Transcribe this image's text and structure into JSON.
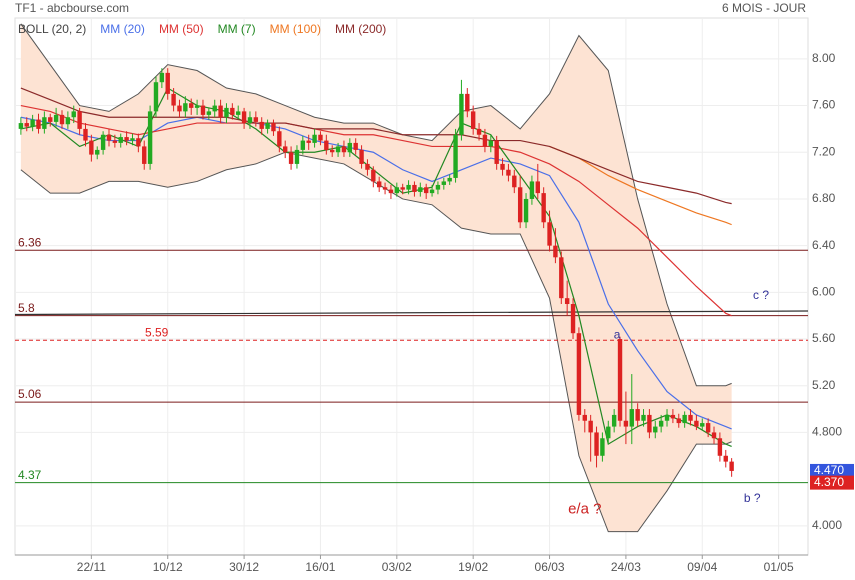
{
  "chart_data": {
    "type": "candlestick",
    "title": "TF1 - abcbourse.com",
    "subtitle": "6 MOIS - JOUR",
    "xlim": [
      -1,
      134
    ],
    "ylim": [
      3.75,
      8.35
    ],
    "xticks": [
      {
        "value": 12,
        "label": "22/11"
      },
      {
        "value": 25,
        "label": "10/12"
      },
      {
        "value": 38,
        "label": "30/12"
      },
      {
        "value": 51,
        "label": "16/01"
      },
      {
        "value": 64,
        "label": "03/02"
      },
      {
        "value": 77,
        "label": "19/02"
      },
      {
        "value": 90,
        "label": "06/03"
      },
      {
        "value": 103,
        "label": "24/03"
      },
      {
        "value": 116,
        "label": "09/04"
      },
      {
        "value": 129,
        "label": "01/05"
      }
    ],
    "yticks": [
      {
        "value": 8,
        "label": "8.00"
      },
      {
        "value": 7.6,
        "label": "7.60"
      },
      {
        "value": 7.2,
        "label": "7.20"
      },
      {
        "value": 6.8,
        "label": "6.80"
      },
      {
        "value": 6.4,
        "label": "6.40"
      },
      {
        "value": 6,
        "label": "6.00"
      },
      {
        "value": 5.6,
        "label": "5.60"
      },
      {
        "value": 5.2,
        "label": "5.20"
      },
      {
        "value": 4.8,
        "label": "4.800"
      },
      {
        "value": 4,
        "label": "4.000"
      }
    ],
    "grid": true,
    "up_color": "#22aa22",
    "down_color": "#dd2222",
    "x": [
      0,
      1,
      2,
      3,
      4,
      5,
      6,
      7,
      8,
      9,
      10,
      11,
      12,
      13,
      14,
      15,
      16,
      17,
      18,
      19,
      20,
      21,
      22,
      23,
      24,
      25,
      26,
      27,
      28,
      29,
      30,
      31,
      32,
      33,
      34,
      35,
      36,
      37,
      38,
      39,
      40,
      41,
      42,
      43,
      44,
      45,
      46,
      47,
      48,
      49,
      50,
      51,
      52,
      53,
      54,
      55,
      56,
      57,
      58,
      59,
      60,
      61,
      62,
      63,
      64,
      65,
      66,
      67,
      68,
      69,
      70,
      71,
      72,
      73,
      74,
      75,
      76,
      77,
      78,
      79,
      80,
      81,
      82,
      83,
      84,
      85,
      86,
      87,
      88,
      89,
      90,
      91,
      92,
      93,
      94,
      95,
      96,
      97,
      98,
      99,
      100,
      101,
      102,
      103,
      104,
      105,
      106,
      107,
      108,
      109,
      110,
      111,
      112,
      113,
      114,
      115,
      116,
      117,
      118,
      119,
      120,
      121
    ],
    "open": [
      7.4,
      7.45,
      7.42,
      7.48,
      7.4,
      7.5,
      7.46,
      7.52,
      7.44,
      7.5,
      7.55,
      7.4,
      7.3,
      7.18,
      7.22,
      7.35,
      7.3,
      7.28,
      7.33,
      7.3,
      7.32,
      7.25,
      7.1,
      7.55,
      7.8,
      7.88,
      7.7,
      7.6,
      7.55,
      7.62,
      7.58,
      7.6,
      7.52,
      7.55,
      7.6,
      7.5,
      7.58,
      7.52,
      7.55,
      7.45,
      7.5,
      7.46,
      7.4,
      7.45,
      7.38,
      7.25,
      7.2,
      7.1,
      7.22,
      7.3,
      7.28,
      7.35,
      7.3,
      7.22,
      7.2,
      7.25,
      7.2,
      7.28,
      7.22,
      7.1,
      7.05,
      6.95,
      6.9,
      6.88,
      6.85,
      6.9,
      6.88,
      6.92,
      6.86,
      6.9,
      6.85,
      6.88,
      6.92,
      6.95,
      6.98,
      7.35,
      7.7,
      7.55,
      7.4,
      7.35,
      7.25,
      7.3,
      7.1,
      7.05,
      7.0,
      6.9,
      6.6,
      6.8,
      6.95,
      6.85,
      6.6,
      6.4,
      6.3,
      5.95,
      5.9,
      5.65,
      4.95,
      4.9,
      4.8,
      4.6,
      4.75,
      4.85,
      5.6,
      4.9,
      4.85,
      5.0,
      4.9,
      4.95,
      4.8,
      4.85,
      4.9,
      4.95,
      4.92,
      4.88,
      4.95,
      4.9,
      4.85,
      4.88,
      4.8,
      4.75,
      4.6,
      4.55
    ],
    "high": [
      7.5,
      7.5,
      7.52,
      7.53,
      7.55,
      7.53,
      7.58,
      7.56,
      7.55,
      7.6,
      7.58,
      7.45,
      7.35,
      7.25,
      7.38,
      7.4,
      7.35,
      7.36,
      7.38,
      7.36,
      7.36,
      7.3,
      7.6,
      7.85,
      7.92,
      7.92,
      7.75,
      7.65,
      7.68,
      7.66,
      7.65,
      7.65,
      7.58,
      7.65,
      7.65,
      7.62,
      7.62,
      7.6,
      7.58,
      7.55,
      7.55,
      7.5,
      7.48,
      7.48,
      7.42,
      7.3,
      7.25,
      7.26,
      7.34,
      7.35,
      7.4,
      7.38,
      7.35,
      7.26,
      7.28,
      7.3,
      7.32,
      7.32,
      7.26,
      7.14,
      7.08,
      6.99,
      6.94,
      6.92,
      6.94,
      6.93,
      6.96,
      6.95,
      6.94,
      6.93,
      6.92,
      6.95,
      6.98,
      7.01,
      7.4,
      7.82,
      7.75,
      7.6,
      7.45,
      7.4,
      7.35,
      7.34,
      7.15,
      7.1,
      7.05,
      7.0,
      6.85,
      7.0,
      7.1,
      6.9,
      6.7,
      6.55,
      6.35,
      6.1,
      5.95,
      5.7,
      5.0,
      4.95,
      4.85,
      4.8,
      4.9,
      5.0,
      5.62,
      5.15,
      5.3,
      5.05,
      5.0,
      5.0,
      4.9,
      4.95,
      5.0,
      5.0,
      4.96,
      4.98,
      5.0,
      4.95,
      4.92,
      4.92,
      4.85,
      4.8,
      4.65,
      4.58
    ],
    "low": [
      7.35,
      7.38,
      7.38,
      7.36,
      7.36,
      7.42,
      7.42,
      7.4,
      7.4,
      7.45,
      7.35,
      7.25,
      7.12,
      7.14,
      7.18,
      7.25,
      7.24,
      7.24,
      7.26,
      7.26,
      7.2,
      7.05,
      7.05,
      7.5,
      7.75,
      7.65,
      7.55,
      7.5,
      7.5,
      7.52,
      7.52,
      7.48,
      7.48,
      7.5,
      7.45,
      7.45,
      7.48,
      7.48,
      7.4,
      7.4,
      7.42,
      7.35,
      7.36,
      7.34,
      7.2,
      7.15,
      7.05,
      7.06,
      7.18,
      7.22,
      7.24,
      7.26,
      7.18,
      7.16,
      7.16,
      7.16,
      7.16,
      7.18,
      7.06,
      7.0,
      6.9,
      6.86,
      6.84,
      6.8,
      6.82,
      6.84,
      6.84,
      6.82,
      6.82,
      6.8,
      6.82,
      6.84,
      6.88,
      6.92,
      6.94,
      7.3,
      7.5,
      7.35,
      7.3,
      7.2,
      7.2,
      7.05,
      7.0,
      6.95,
      6.85,
      6.55,
      6.55,
      6.75,
      6.8,
      6.55,
      6.35,
      6.25,
      5.9,
      5.8,
      5.6,
      4.9,
      4.8,
      4.55,
      4.5,
      4.55,
      4.7,
      4.8,
      4.85,
      4.7,
      4.7,
      4.85,
      4.85,
      4.75,
      4.75,
      4.8,
      4.85,
      4.88,
      4.84,
      4.84,
      4.86,
      4.82,
      4.82,
      4.76,
      4.7,
      4.55,
      4.5,
      4.42
    ],
    "close": [
      7.45,
      7.42,
      7.48,
      7.4,
      7.5,
      7.46,
      7.52,
      7.44,
      7.5,
      7.55,
      7.4,
      7.3,
      7.18,
      7.22,
      7.35,
      7.3,
      7.28,
      7.33,
      7.3,
      7.32,
      7.25,
      7.1,
      7.55,
      7.8,
      7.88,
      7.7,
      7.6,
      7.55,
      7.62,
      7.58,
      7.6,
      7.52,
      7.55,
      7.6,
      7.5,
      7.58,
      7.52,
      7.55,
      7.45,
      7.5,
      7.46,
      7.4,
      7.45,
      7.38,
      7.25,
      7.2,
      7.1,
      7.22,
      7.3,
      7.28,
      7.35,
      7.3,
      7.22,
      7.2,
      7.25,
      7.2,
      7.28,
      7.22,
      7.1,
      7.05,
      6.95,
      6.9,
      6.88,
      6.85,
      6.9,
      6.88,
      6.92,
      6.86,
      6.9,
      6.85,
      6.88,
      6.92,
      6.95,
      6.98,
      7.35,
      7.7,
      7.55,
      7.4,
      7.35,
      7.25,
      7.3,
      7.1,
      7.05,
      7.0,
      6.9,
      6.6,
      6.8,
      6.95,
      6.85,
      6.6,
      6.4,
      6.3,
      5.95,
      5.9,
      5.65,
      4.95,
      4.9,
      4.8,
      4.6,
      4.75,
      4.85,
      4.95,
      4.9,
      4.85,
      5.0,
      4.9,
      4.95,
      4.8,
      4.85,
      4.9,
      4.95,
      4.92,
      4.88,
      4.95,
      4.9,
      4.85,
      4.88,
      4.8,
      4.75,
      4.6,
      4.55,
      4.47
    ],
    "line_x": [
      0,
      5,
      10,
      15,
      20,
      25,
      30,
      35,
      40,
      45,
      50,
      55,
      60,
      65,
      70,
      75,
      80,
      85,
      90,
      95,
      100,
      105,
      110,
      115,
      120,
      121
    ],
    "bollinger": {
      "name": "BOLL (20, 2)",
      "color": "#555555",
      "fill": "#fde3d3",
      "upper": [
        8.3,
        7.95,
        7.6,
        7.55,
        7.7,
        7.95,
        7.9,
        7.75,
        7.7,
        7.6,
        7.5,
        7.45,
        7.45,
        7.35,
        7.3,
        7.55,
        7.6,
        7.4,
        7.7,
        8.2,
        7.9,
        6.8,
        5.9,
        5.2,
        5.2,
        5.22
      ],
      "lower": [
        7.05,
        6.85,
        6.85,
        6.95,
        6.95,
        6.9,
        6.95,
        7.05,
        7.1,
        7.2,
        7.15,
        7.1,
        6.95,
        6.8,
        6.75,
        6.55,
        6.5,
        6.5,
        5.95,
        4.6,
        3.95,
        3.95,
        4.3,
        4.7,
        4.7,
        4.72
      ]
    },
    "lines": [
      {
        "name": "MM (20)",
        "color": "#4a6fe8",
        "values": [
          7.5,
          7.45,
          7.35,
          7.3,
          7.3,
          7.45,
          7.5,
          7.45,
          7.45,
          7.4,
          7.3,
          7.25,
          7.2,
          7.05,
          6.95,
          7.05,
          7.15,
          7.1,
          7.0,
          6.6,
          5.9,
          5.5,
          5.15,
          4.95,
          4.85,
          4.83
        ]
      },
      {
        "name": "MM (50)",
        "color": "#dd3333",
        "values": [
          7.6,
          7.55,
          7.45,
          7.4,
          7.35,
          7.4,
          7.45,
          7.45,
          7.45,
          7.45,
          7.4,
          7.35,
          7.35,
          7.3,
          7.25,
          7.25,
          7.25,
          7.2,
          7.1,
          6.95,
          6.75,
          6.55,
          6.3,
          6.05,
          5.82,
          5.8
        ]
      },
      {
        "name": "MM (7)",
        "color": "#228822",
        "values": [
          7.4,
          7.45,
          7.25,
          7.35,
          7.25,
          7.75,
          7.6,
          7.55,
          7.4,
          7.2,
          7.2,
          7.25,
          7.05,
          6.85,
          6.9,
          7.45,
          7.35,
          7.0,
          6.65,
          5.8,
          4.7,
          4.85,
          4.95,
          4.85,
          4.7,
          4.68
        ]
      },
      {
        "name": "MM (100)",
        "color": "#ee7722",
        "values": [
          null,
          null,
          null,
          null,
          null,
          null,
          null,
          null,
          null,
          null,
          null,
          null,
          null,
          null,
          null,
          null,
          null,
          null,
          7.25,
          7.15,
          7.0,
          6.88,
          6.78,
          6.68,
          6.6,
          6.58
        ]
      },
      {
        "name": "MM (200)",
        "color": "#8b2a2a",
        "values": [
          7.75,
          7.65,
          7.55,
          7.5,
          7.5,
          7.5,
          7.5,
          7.5,
          7.45,
          7.45,
          7.4,
          7.4,
          7.4,
          7.35,
          7.35,
          7.35,
          7.3,
          7.3,
          7.25,
          7.15,
          7.05,
          6.95,
          6.9,
          6.85,
          6.77,
          6.76
        ]
      }
    ],
    "trendline": {
      "color": "#333333",
      "x": [
        -1,
        134
      ],
      "values": [
        5.81,
        5.84
      ]
    },
    "levels": [
      {
        "value": 6.36,
        "color": "#7a1a1a",
        "dashed": false
      },
      {
        "value": 5.8,
        "color": "#7a1a1a",
        "dashed": false
      },
      {
        "value": 5.59,
        "color": "#dd2222",
        "dashed": true
      },
      {
        "value": 5.06,
        "color": "#7a1a1a",
        "dashed": false
      },
      {
        "value": 4.37,
        "color": "#228822",
        "dashed": false
      }
    ],
    "price_tags": [
      {
        "value": 4.47,
        "label": "4.470",
        "color": "#3355dd"
      },
      {
        "value": 4.37,
        "label": "4.370",
        "color": "#dd2222"
      }
    ],
    "annotations": [
      {
        "text": "a",
        "x": 101.5,
        "y": 5.63,
        "color": "#333399"
      },
      {
        "text": "c ?",
        "x": 126,
        "y": 5.97,
        "color": "#333399"
      },
      {
        "text": "b ?",
        "x": 124.5,
        "y": 4.23,
        "color": "#333399"
      },
      {
        "text": "e/a ?",
        "x": 96,
        "y": 4.14,
        "color": "#cc2222"
      }
    ]
  }
}
